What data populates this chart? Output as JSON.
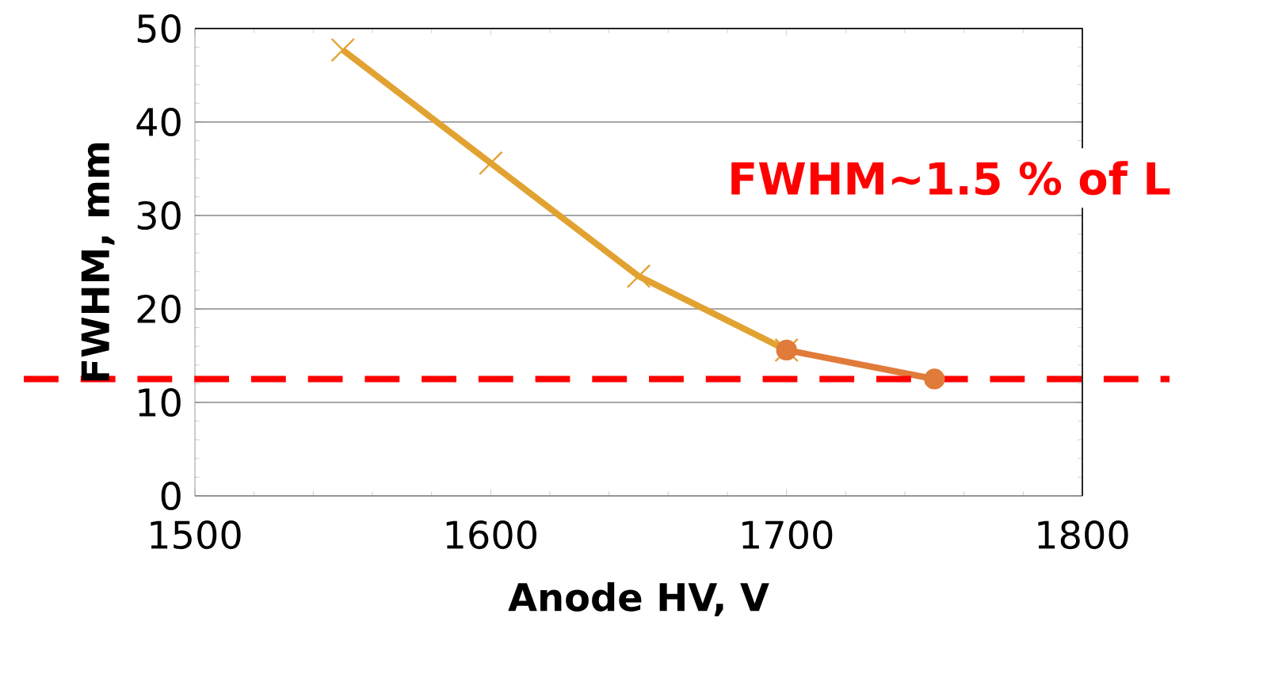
{
  "chart_data": {
    "type": "line",
    "xlabel": "Anode HV, V",
    "ylabel": "FWHM, mm",
    "series": [
      {
        "x": [
          1550,
          1600,
          1650,
          1700
        ],
        "values": [
          47.7,
          35.6,
          23.5,
          15.6
        ],
        "color": "#e2a232",
        "marker": "cross"
      },
      {
        "x": [
          1700,
          1750
        ],
        "values": [
          15.6,
          12.5
        ],
        "color": "#e07b39",
        "marker": "circle"
      }
    ],
    "xlim": [
      1500,
      1800
    ],
    "xticks": [
      1500,
      1600,
      1700,
      1800
    ],
    "ylim": [
      0,
      50
    ],
    "yticks": [
      0,
      10,
      20,
      30,
      40,
      50
    ],
    "grid": "y",
    "ref_lines": [
      {
        "axis": "y",
        "value": 12.5,
        "color": "#ff0000",
        "line_style": "dashed"
      }
    ],
    "annotations": [
      "FWHM~1.5 % of L"
    ],
    "line_style": "solid"
  }
}
